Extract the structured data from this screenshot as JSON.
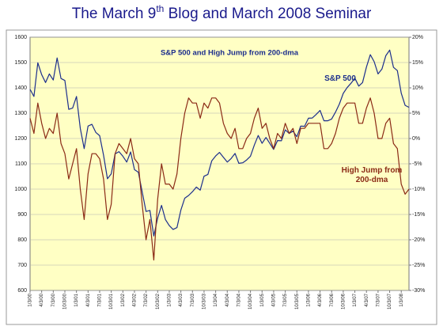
{
  "chart_data": {
    "type": "line",
    "title": [
      "The March 9",
      "th",
      " Blog and March 2008 Seminar"
    ],
    "subtitle": "S&P 500 and High Jump from 200-dma",
    "categories": [
      "1/3/00",
      null,
      null,
      "4/3/00",
      null,
      null,
      "7/3/00",
      null,
      null,
      "10/3/00",
      null,
      null,
      "1/3/01",
      null,
      null,
      "4/3/01",
      null,
      null,
      "7/3/01",
      null,
      null,
      "10/3/01",
      null,
      null,
      "1/3/02",
      null,
      null,
      "4/3/02",
      null,
      null,
      "7/3/02",
      null,
      null,
      "10/3/02",
      null,
      null,
      "1/3/03",
      null,
      null,
      "4/3/03",
      null,
      null,
      "7/3/03",
      null,
      null,
      "10/3/03",
      null,
      null,
      "1/3/04",
      null,
      null,
      "4/3/04",
      null,
      null,
      "7/3/04",
      null,
      null,
      "10/3/04",
      null,
      null,
      "1/3/05",
      null,
      null,
      "4/3/05",
      null,
      null,
      "7/3/05",
      null,
      null,
      "10/3/05",
      null,
      null,
      "1/3/06",
      null,
      null,
      "4/3/06",
      null,
      null,
      "7/3/06",
      null,
      null,
      "10/3/06",
      null,
      null,
      "1/3/07",
      null,
      null,
      "4/3/07",
      null,
      null,
      "7/3/07",
      null,
      null,
      "10/3/07",
      null,
      null,
      "1/3/08",
      null,
      null
    ],
    "series": [
      {
        "name": "S&P 500",
        "color": "#1c2e8c",
        "values": [
          1394,
          1366,
          1499,
          1452,
          1421,
          1455,
          1431,
          1518,
          1437,
          1429,
          1315,
          1320,
          1366,
          1240,
          1160,
          1249,
          1256,
          1224,
          1211,
          1134,
          1041,
          1060,
          1139,
          1148,
          1130,
          1107,
          1147,
          1077,
          1067,
          990,
          912,
          916,
          815,
          886,
          936,
          880,
          856,
          841,
          848,
          917,
          964,
          975,
          990,
          1008,
          996,
          1051,
          1058,
          1112,
          1131,
          1145,
          1126,
          1107,
          1121,
          1141,
          1102,
          1104,
          1115,
          1130,
          1174,
          1212,
          1181,
          1204,
          1181,
          1157,
          1192,
          1191,
          1234,
          1220,
          1229,
          1207,
          1249,
          1248,
          1280,
          1281,
          1295,
          1311,
          1270,
          1270,
          1277,
          1304,
          1336,
          1378,
          1401,
          1418,
          1438,
          1407,
          1421,
          1482,
          1531,
          1503,
          1455,
          1474,
          1527,
          1549,
          1481,
          1468,
          1379,
          1331,
          1323
        ]
      },
      {
        "name": "High Jump from 200-dma",
        "color": "#8b2a16",
        "axis": "y2",
        "values": [
          4,
          1,
          7,
          3,
          0,
          2,
          1,
          5,
          -1,
          -3,
          -8,
          -5,
          -2,
          -10,
          -16,
          -7,
          -3,
          -3,
          -4,
          -8,
          -16,
          -13,
          -3,
          -1,
          -2,
          -3,
          0,
          -4,
          -5,
          -13,
          -20,
          -16,
          -24,
          -12,
          -5,
          -9,
          -9,
          -10,
          -7,
          0,
          5,
          8,
          7,
          7,
          4,
          7,
          6,
          8,
          8,
          7,
          3,
          1,
          0,
          2,
          -2,
          -2,
          0,
          1,
          4,
          6,
          2,
          3,
          0,
          -2,
          1,
          0,
          3,
          1,
          2,
          -1,
          2,
          2,
          3,
          3,
          3,
          3,
          -2,
          -2,
          -1,
          1,
          4,
          6,
          7,
          7,
          7,
          3,
          3,
          6,
          8,
          5,
          0,
          0,
          3,
          4,
          -1,
          -2,
          -9,
          -11,
          -10
        ]
      }
    ],
    "ylim": [
      600,
      1600
    ],
    "yticks": [
      600,
      700,
      800,
      900,
      1000,
      1100,
      1200,
      1300,
      1400,
      1500,
      1600
    ],
    "y2lim": [
      -30,
      20
    ],
    "y2ticks": [
      {
        "value": -30,
        "label": "-30%"
      },
      {
        "value": -25,
        "label": "-25%"
      },
      {
        "value": -20,
        "label": "-20%"
      },
      {
        "value": -15,
        "label": "-15%"
      },
      {
        "value": -10,
        "label": "-10%"
      },
      {
        "value": -5,
        "label": "-5%"
      },
      {
        "value": 0,
        "label": "0%"
      },
      {
        "value": 5,
        "label": "5%"
      },
      {
        "value": 10,
        "label": "10%"
      },
      {
        "value": 15,
        "label": "15%"
      },
      {
        "value": 20,
        "label": "20%"
      }
    ],
    "grid": true
  }
}
